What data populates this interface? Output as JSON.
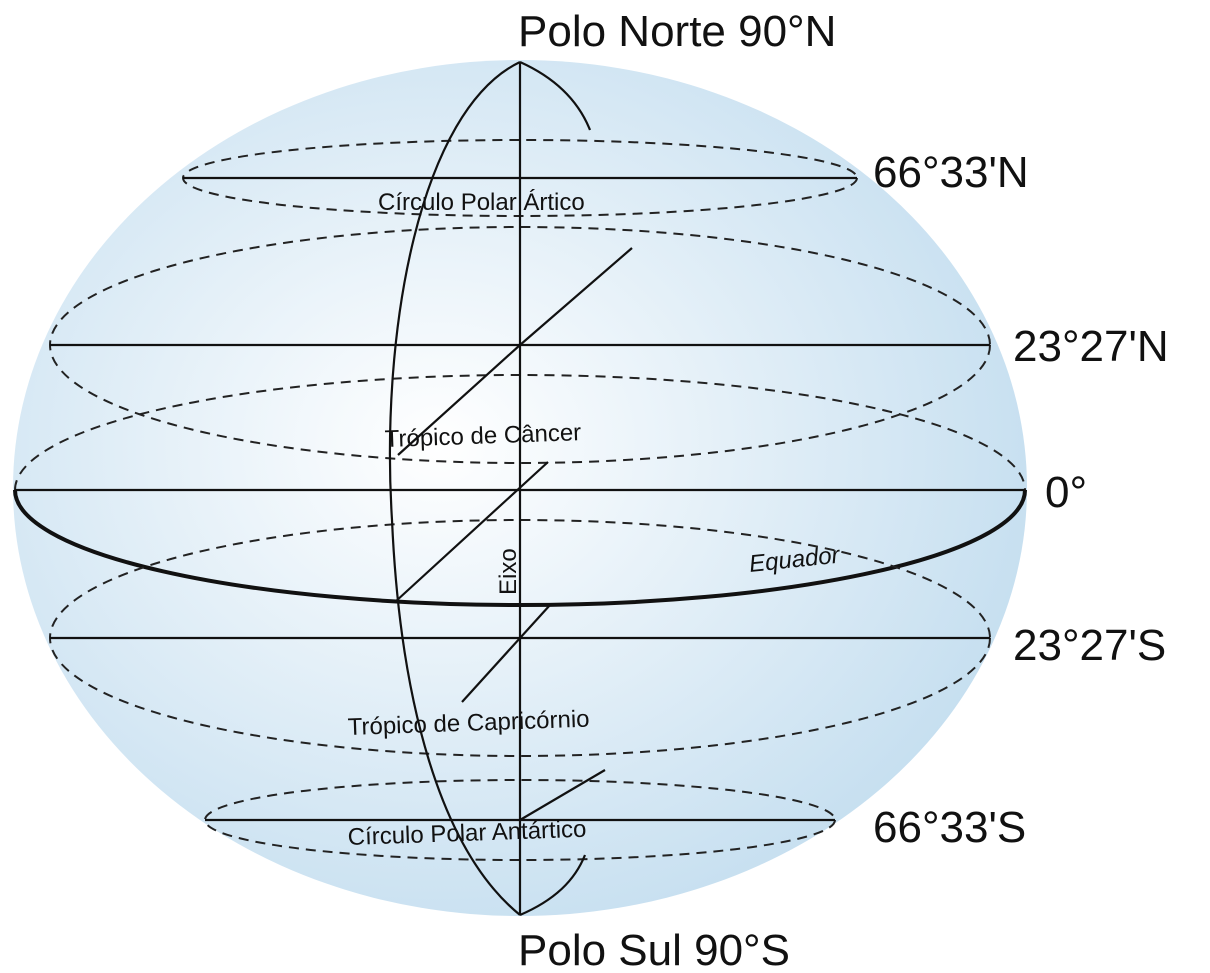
{
  "poles": {
    "north": "Polo Norte 90°N",
    "south": "Polo Sul 90°S"
  },
  "latitudes": [
    {
      "label": "66°33'N",
      "name": "Círculo Polar Ártico"
    },
    {
      "label": "23°27'N",
      "name": "Trópico de Câncer"
    },
    {
      "label": "0°",
      "name": "Equador"
    },
    {
      "label": "23°27'S",
      "name": "Trópico de Capricórnio"
    },
    {
      "label": "66°33'S",
      "name": "Círculo Polar Antártico"
    }
  ],
  "axis": "Eixo"
}
